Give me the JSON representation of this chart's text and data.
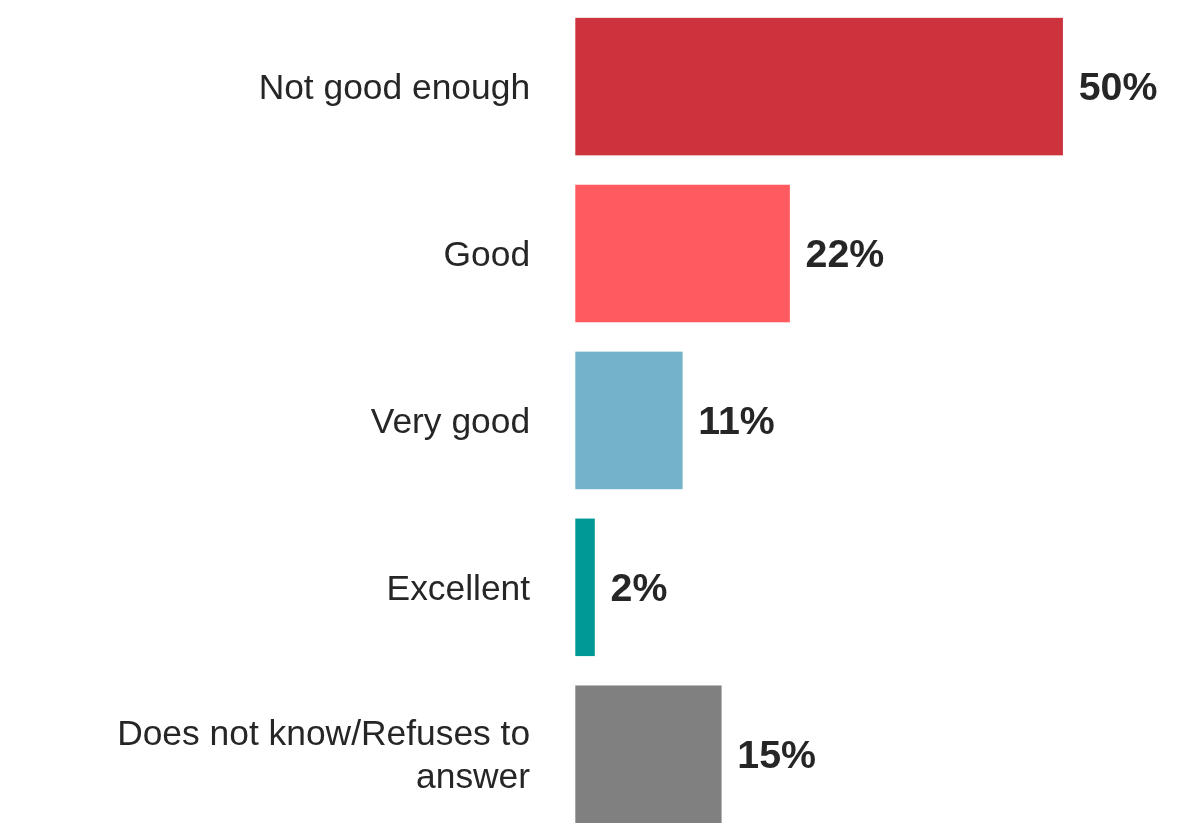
{
  "chart_data": {
    "type": "bar",
    "orientation": "horizontal",
    "categories": [
      "Not good enough",
      "Good",
      "Very good",
      "Excellent",
      "Does not know/Refuses to answer"
    ],
    "values": [
      50,
      22,
      11,
      2,
      15
    ],
    "colors": [
      "#cc333d",
      "#ff5a5f",
      "#73b2c9",
      "#009a96",
      "#808080"
    ],
    "value_labels": [
      "50%",
      "22%",
      "11%",
      "2%",
      "15%"
    ]
  }
}
